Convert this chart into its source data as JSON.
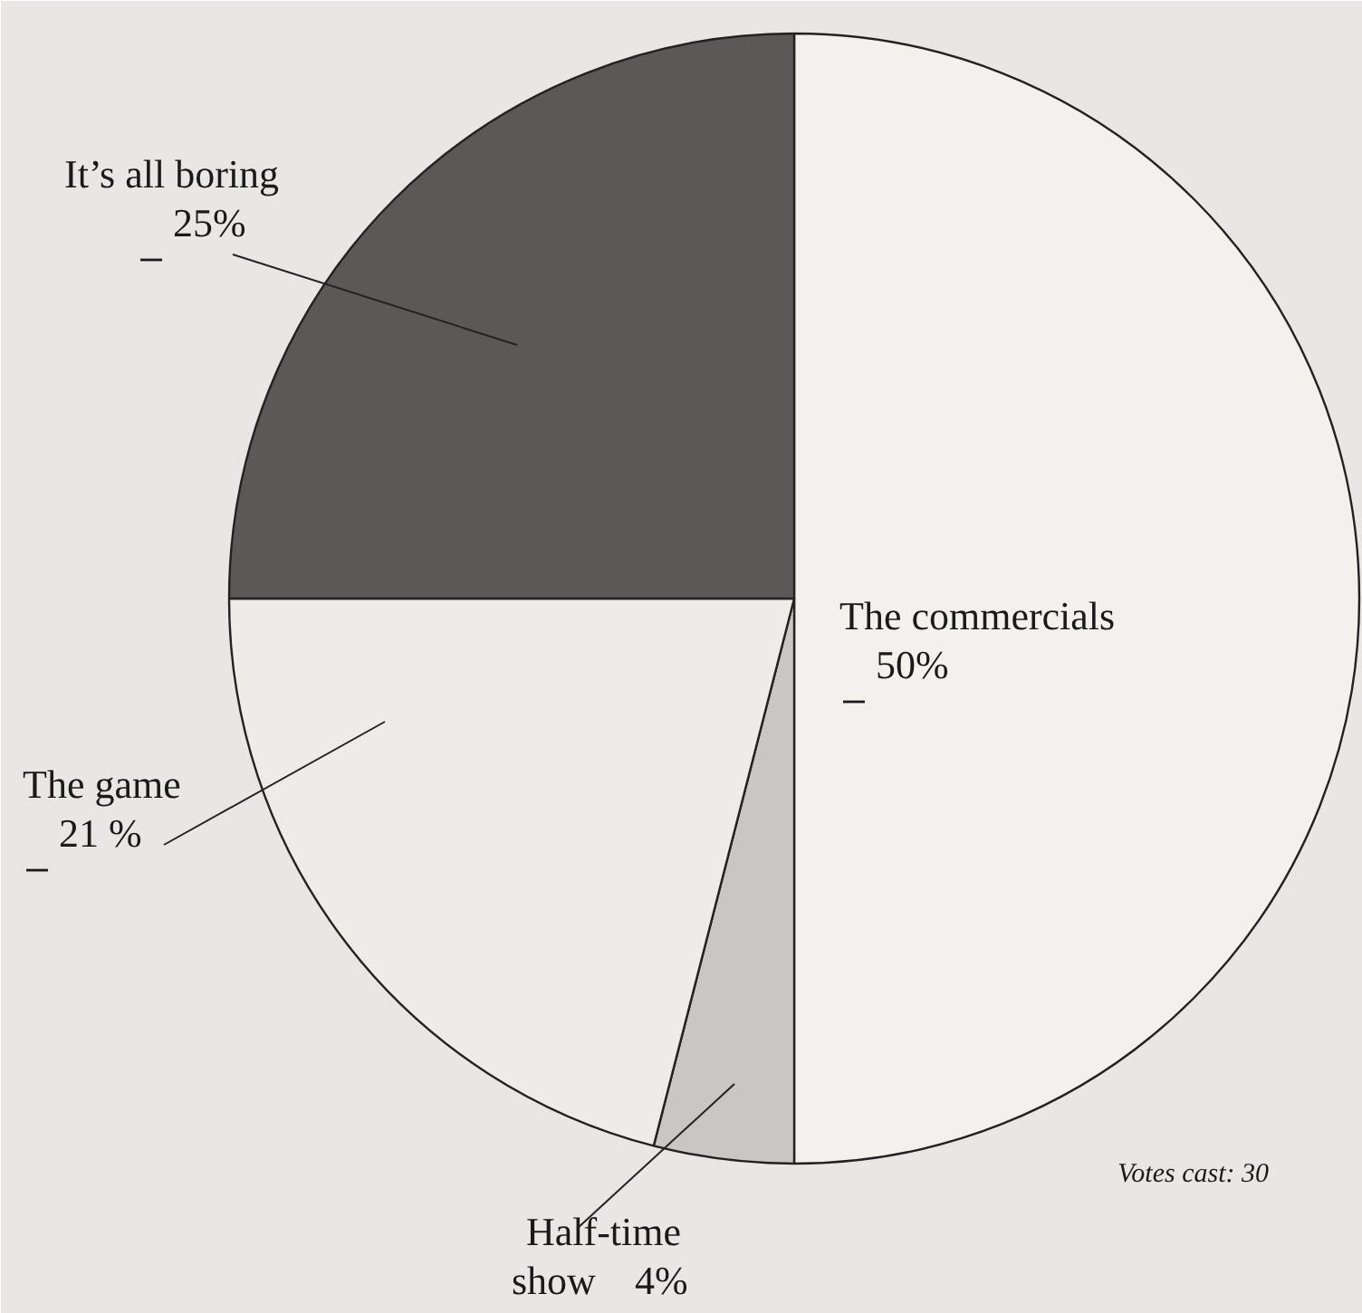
{
  "chart_data": {
    "type": "pie",
    "categories": [
      "The commercials",
      "Half-time show",
      "The game",
      "It’s all boring"
    ],
    "values": [
      50,
      4,
      21,
      25
    ],
    "value_labels": [
      "50%",
      "4%",
      "21 %",
      "25%"
    ],
    "colors": [
      "#f3f1ec",
      "#c9c7c2",
      "#eeece7",
      "#5a5958"
    ],
    "annotations": [
      "Votes cast: 30"
    ]
  }
}
